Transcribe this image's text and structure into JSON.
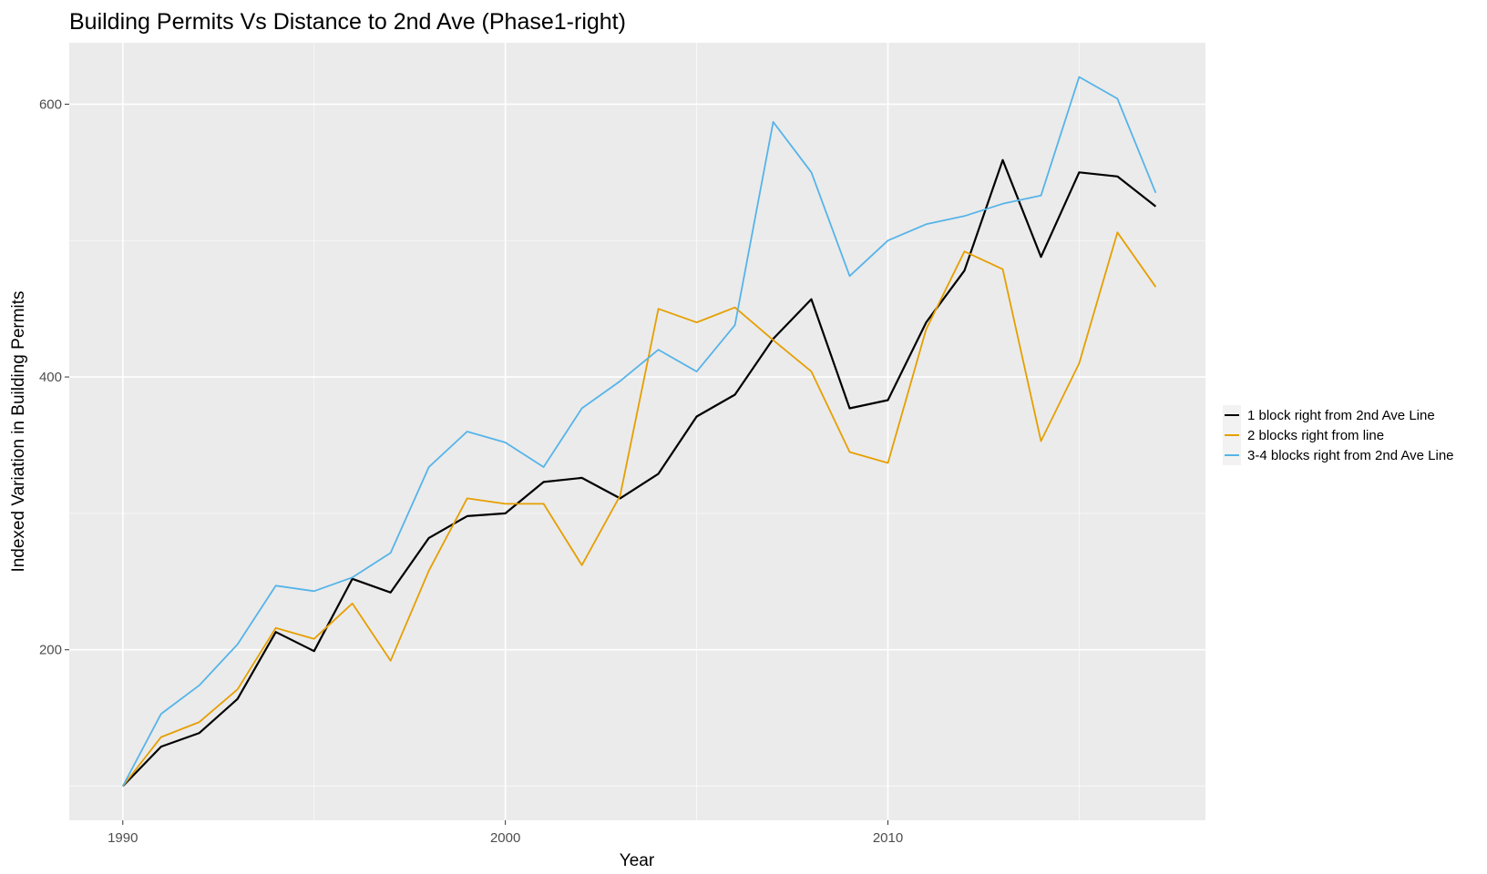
{
  "chart_data": {
    "type": "line",
    "title": "Building Permits Vs Distance to 2nd Ave (Phase1-right)",
    "xlabel": "Year",
    "ylabel": "Indexed Variation in Building Permits",
    "xlim": [
      1988.6,
      2018.3
    ],
    "ylim": [
      75,
      645
    ],
    "x_ticks": [
      1990,
      2000,
      2010
    ],
    "x_tick_labels": [
      "1990",
      "2000",
      "2010"
    ],
    "y_ticks": [
      200,
      400,
      600
    ],
    "y_tick_labels": [
      "200",
      "400",
      "600"
    ],
    "grid": true,
    "panel_background": "#ebebeb",
    "grid_color": "#ffffff",
    "legend_position": "right",
    "x": [
      1990,
      1991,
      1992,
      1993,
      1994,
      1995,
      1996,
      1997,
      1998,
      1999,
      2000,
      2001,
      2002,
      2003,
      2004,
      2005,
      2006,
      2007,
      2008,
      2009,
      2010,
      2011,
      2012,
      2013,
      2014,
      2015,
      2016,
      2017
    ],
    "series": [
      {
        "name": "1 block right from 2nd Ave Line",
        "color": "#000000",
        "values": [
          100,
          129,
          139,
          164,
          213,
          199,
          252,
          242,
          282,
          298,
          300,
          323,
          326,
          311,
          329,
          371,
          387,
          428,
          457,
          377,
          383,
          440,
          478,
          559,
          488,
          550,
          547,
          525
        ]
      },
      {
        "name": "2 blocks right from line",
        "color": "#e69f00",
        "values": [
          100,
          136,
          147,
          171,
          216,
          208,
          234,
          192,
          258,
          311,
          307,
          307,
          262,
          313,
          450,
          440,
          451,
          427,
          404,
          345,
          337,
          435,
          492,
          479,
          353,
          410,
          506,
          466
        ]
      },
      {
        "name": "3-4 blocks right from 2nd Ave Line",
        "color": "#56b4e9",
        "values": [
          100,
          153,
          174,
          204,
          247,
          243,
          253,
          271,
          334,
          360,
          352,
          334,
          377,
          397,
          420,
          404,
          438,
          587,
          550,
          474,
          500,
          512,
          518,
          527,
          533,
          620,
          604,
          535
        ]
      }
    ]
  }
}
